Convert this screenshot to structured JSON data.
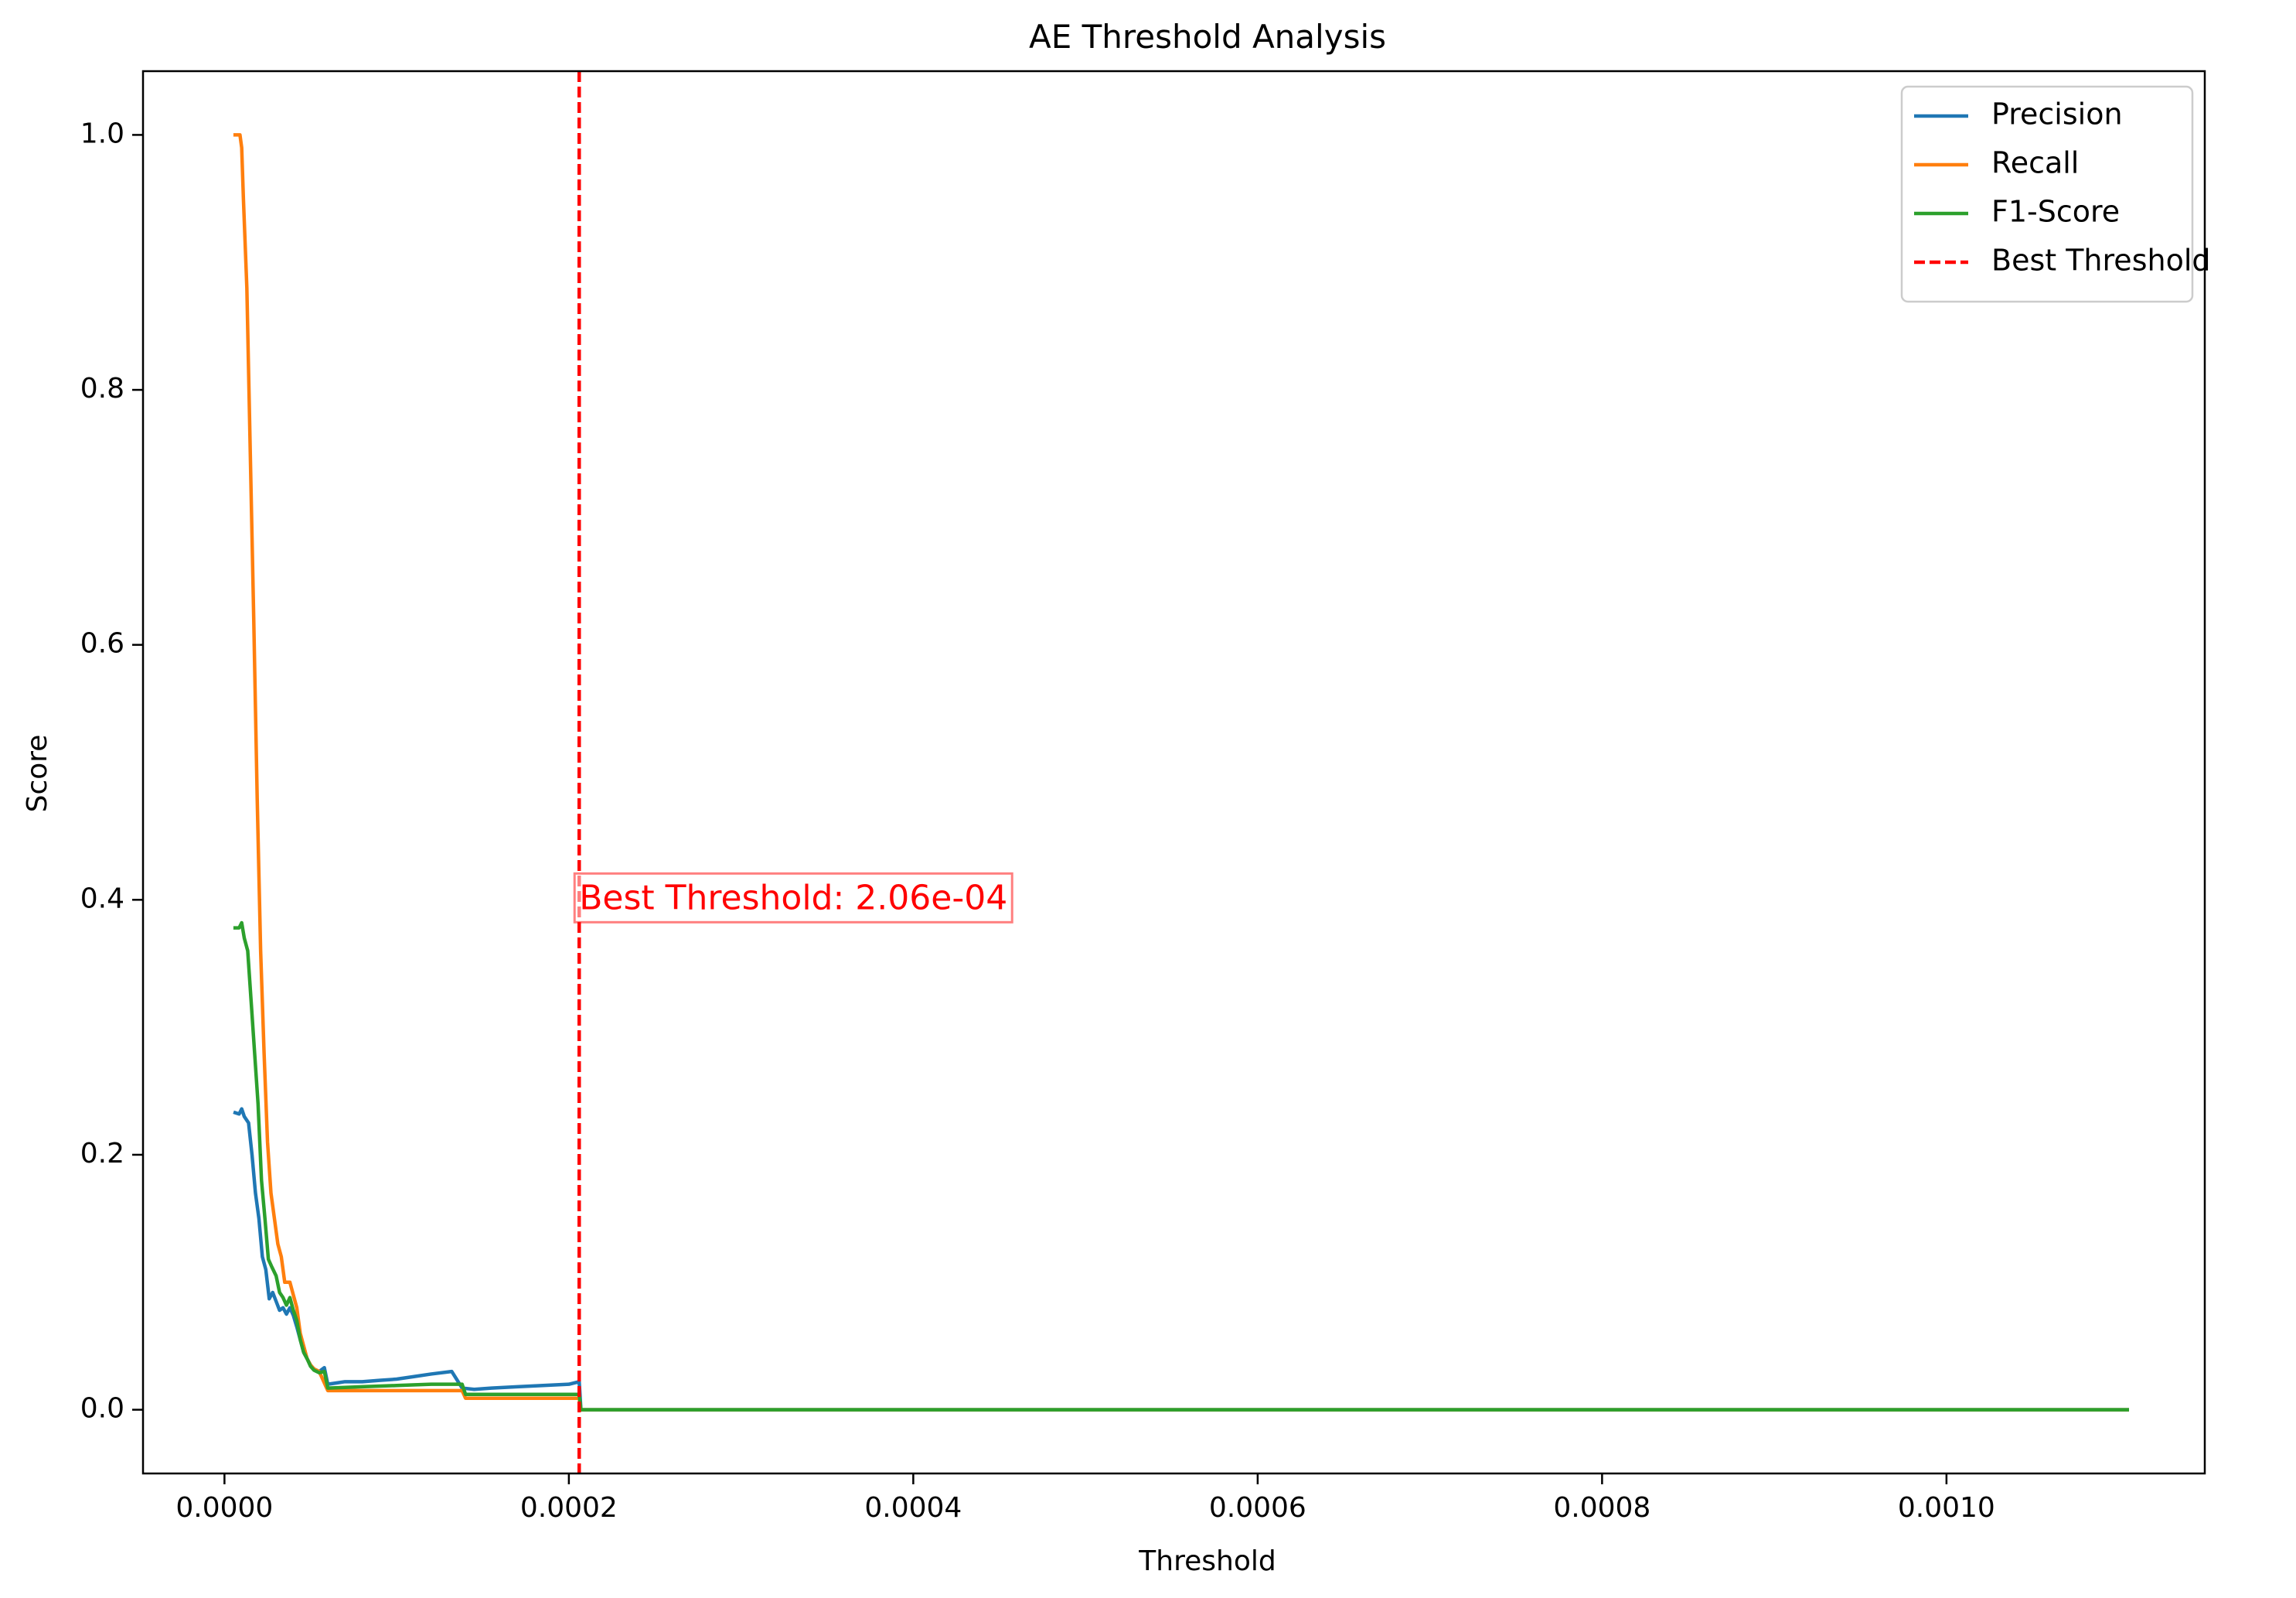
{
  "chart_data": {
    "type": "line",
    "title": "AE Threshold Analysis",
    "xlabel": "Threshold",
    "ylabel": "Score",
    "xlim": [
      -4.73e-05,
      0.00115
    ],
    "ylim": [
      -0.05,
      1.05
    ],
    "xticks": [
      0.0,
      0.0002,
      0.0004,
      0.0006,
      0.0008,
      0.001
    ],
    "xtick_labels": [
      "0.0000",
      "0.0002",
      "0.0004",
      "0.0006",
      "0.0008",
      "0.0010"
    ],
    "yticks": [
      0.0,
      0.2,
      0.4,
      0.6,
      0.8,
      1.0
    ],
    "ytick_labels": [
      "0.0",
      "0.2",
      "0.4",
      "0.6",
      "0.8",
      "1.0"
    ],
    "grid": false,
    "legend_position": "top-right",
    "series": [
      {
        "name": "Precision",
        "color": "#1f77b4",
        "points": [
          [
            6.2e-06,
            0.233
          ],
          [
            8.5e-06,
            0.232
          ],
          [
            1e-05,
            0.236
          ],
          [
            1.15e-05,
            0.23
          ],
          [
            1.4e-05,
            0.225
          ],
          [
            1.6e-05,
            0.2
          ],
          [
            1.8e-05,
            0.17
          ],
          [
            2e-05,
            0.15
          ],
          [
            2.2e-05,
            0.12
          ],
          [
            2.4e-05,
            0.11
          ],
          [
            2.6e-05,
            0.087
          ],
          [
            2.8e-05,
            0.092
          ],
          [
            3e-05,
            0.085
          ],
          [
            3.2e-05,
            0.078
          ],
          [
            3.4e-05,
            0.08
          ],
          [
            3.6e-05,
            0.075
          ],
          [
            3.8e-05,
            0.08
          ],
          [
            4e-05,
            0.074
          ],
          [
            4.2e-05,
            0.065
          ],
          [
            4.4e-05,
            0.055
          ],
          [
            4.6e-05,
            0.045
          ],
          [
            4.8e-05,
            0.04
          ],
          [
            5e-05,
            0.035
          ],
          [
            5.2e-05,
            0.032
          ],
          [
            5.5e-05,
            0.03
          ],
          [
            5.8e-05,
            0.033
          ],
          [
            6e-05,
            0.02
          ],
          [
            6.5e-05,
            0.021
          ],
          [
            7e-05,
            0.022
          ],
          [
            8e-05,
            0.022
          ],
          [
            9e-05,
            0.023
          ],
          [
            0.0001,
            0.024
          ],
          [
            0.00011,
            0.026
          ],
          [
            0.00012,
            0.028
          ],
          [
            0.000132,
            0.03
          ],
          [
            0.000138,
            0.017
          ],
          [
            0.000145,
            0.016
          ],
          [
            0.000155,
            0.017
          ],
          [
            0.00017,
            0.018
          ],
          [
            0.000185,
            0.019
          ],
          [
            0.0002,
            0.02
          ],
          [
            0.000206,
            0.022
          ],
          [
            0.000207,
            0.0
          ],
          [
            0.001105,
            0.0
          ]
        ]
      },
      {
        "name": "Recall",
        "color": "#ff7f0e",
        "points": [
          [
            6.2e-06,
            1.0
          ],
          [
            9e-06,
            1.0
          ],
          [
            1e-05,
            0.99
          ],
          [
            1.1e-05,
            0.95
          ],
          [
            1.3e-05,
            0.88
          ],
          [
            1.5e-05,
            0.75
          ],
          [
            1.7e-05,
            0.62
          ],
          [
            1.9e-05,
            0.48
          ],
          [
            2.1e-05,
            0.36
          ],
          [
            2.3e-05,
            0.28
          ],
          [
            2.5e-05,
            0.21
          ],
          [
            2.7e-05,
            0.17
          ],
          [
            2.9e-05,
            0.15
          ],
          [
            3.1e-05,
            0.13
          ],
          [
            3.3e-05,
            0.12
          ],
          [
            3.5e-05,
            0.1
          ],
          [
            3.8e-05,
            0.1
          ],
          [
            4e-05,
            0.09
          ],
          [
            4.2e-05,
            0.08
          ],
          [
            4.4e-05,
            0.06
          ],
          [
            4.6e-05,
            0.05
          ],
          [
            4.8e-05,
            0.04
          ],
          [
            5e-05,
            0.035
          ],
          [
            5.2e-05,
            0.032
          ],
          [
            5.5e-05,
            0.03
          ],
          [
            6e-05,
            0.015
          ],
          [
            8e-05,
            0.015
          ],
          [
            0.0001,
            0.015
          ],
          [
            0.000138,
            0.015
          ],
          [
            0.00014,
            0.009
          ],
          [
            0.00018,
            0.009
          ],
          [
            0.000206,
            0.009
          ],
          [
            0.000207,
            0.0
          ],
          [
            0.001105,
            0.0
          ]
        ]
      },
      {
        "name": "F1-Score",
        "color": "#2ca02c",
        "points": [
          [
            6.2e-06,
            0.378
          ],
          [
            8.5e-06,
            0.378
          ],
          [
            1e-05,
            0.382
          ],
          [
            1.15e-05,
            0.37
          ],
          [
            1.35e-05,
            0.36
          ],
          [
            1.55e-05,
            0.32
          ],
          [
            1.75e-05,
            0.28
          ],
          [
            1.95e-05,
            0.24
          ],
          [
            2.15e-05,
            0.18
          ],
          [
            2.35e-05,
            0.15
          ],
          [
            2.55e-05,
            0.118
          ],
          [
            2.75e-05,
            0.112
          ],
          [
            3e-05,
            0.105
          ],
          [
            3.2e-05,
            0.092
          ],
          [
            3.4e-05,
            0.088
          ],
          [
            3.6e-05,
            0.082
          ],
          [
            3.8e-05,
            0.088
          ],
          [
            4e-05,
            0.078
          ],
          [
            4.2e-05,
            0.07
          ],
          [
            4.4e-05,
            0.055
          ],
          [
            4.6e-05,
            0.045
          ],
          [
            4.8e-05,
            0.04
          ],
          [
            5e-05,
            0.034
          ],
          [
            5.2e-05,
            0.031
          ],
          [
            5.5e-05,
            0.029
          ],
          [
            5.8e-05,
            0.03
          ],
          [
            6e-05,
            0.017
          ],
          [
            8e-05,
            0.018
          ],
          [
            0.0001,
            0.019
          ],
          [
            0.00012,
            0.02
          ],
          [
            0.000138,
            0.02
          ],
          [
            0.00014,
            0.012
          ],
          [
            0.00018,
            0.012
          ],
          [
            0.000206,
            0.012
          ],
          [
            0.000207,
            0.0
          ],
          [
            0.001105,
            0.0
          ]
        ]
      }
    ],
    "reference_line": {
      "name": "Best Threshold",
      "x": 0.000206,
      "color": "#ff0000",
      "style": "dashed"
    },
    "annotation": {
      "text": "Best Threshold: 2.06e-04",
      "x": 0.000206,
      "y": 0.4,
      "color": "#ff0000"
    }
  }
}
